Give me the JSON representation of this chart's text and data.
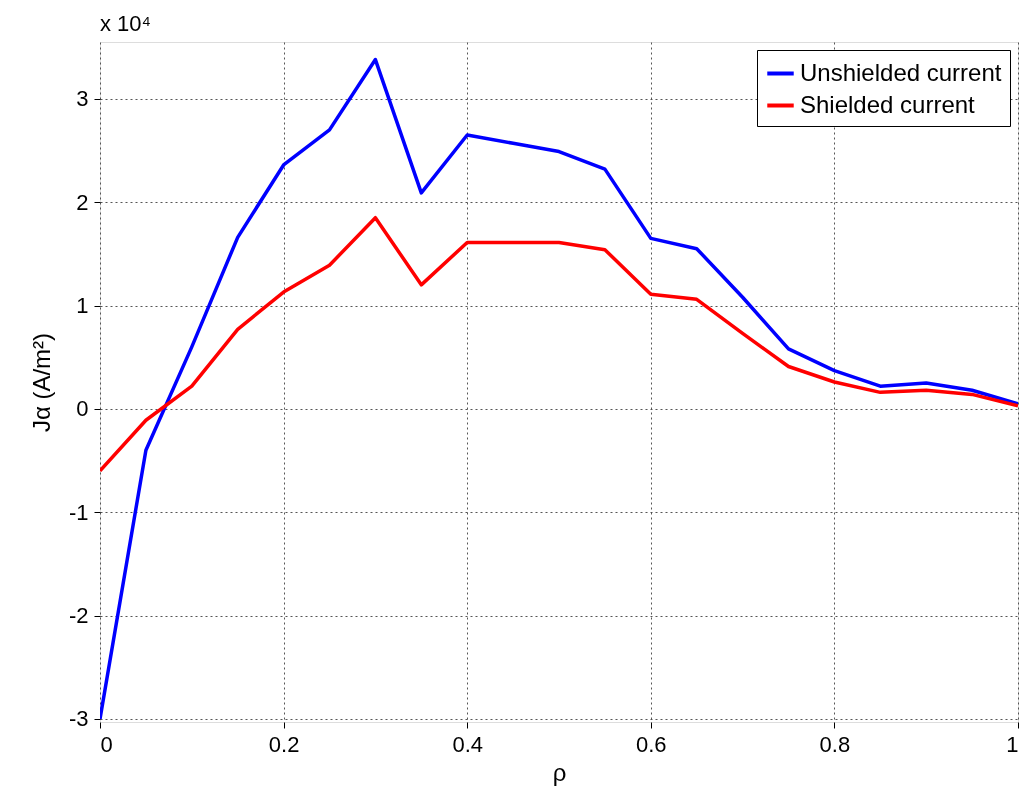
{
  "chart_data": {
    "type": "line",
    "xlabel": "ρ",
    "ylabel": "Jα (A/m²)",
    "annotations": [
      "x 10⁴"
    ],
    "x": [
      0,
      0.05,
      0.1,
      0.15,
      0.2,
      0.25,
      0.3,
      0.35,
      0.4,
      0.45,
      0.5,
      0.55,
      0.6,
      0.65,
      0.7,
      0.75,
      0.8,
      0.85,
      0.9,
      0.95,
      1.0
    ],
    "series": [
      {
        "name": "Unshielded current",
        "color": "#0000ff",
        "values": [
          -3.0,
          -0.4,
          0.6,
          1.66,
          2.36,
          2.7,
          3.38,
          2.09,
          2.65,
          2.57,
          2.49,
          2.32,
          1.65,
          1.55,
          1.08,
          0.58,
          0.37,
          0.22,
          0.25,
          0.18,
          0.05
        ]
      },
      {
        "name": "Shielded current",
        "color": "#ff0000",
        "values": [
          -0.6,
          -0.11,
          0.22,
          0.77,
          1.13,
          1.39,
          1.85,
          1.2,
          1.61,
          1.61,
          1.61,
          1.54,
          1.11,
          1.06,
          0.73,
          0.41,
          0.26,
          0.16,
          0.18,
          0.14,
          0.03
        ]
      }
    ],
    "xlim": [
      0,
      1
    ],
    "xticks": [
      0,
      0.2,
      0.4,
      0.6,
      0.8,
      1
    ],
    "ylim": [
      -3.03,
      3.55
    ],
    "yticks": [
      -3,
      -2,
      -1,
      0,
      1,
      2,
      3
    ],
    "grid": true,
    "legend": "top right",
    "marker": "none",
    "line_style": "solid"
  }
}
